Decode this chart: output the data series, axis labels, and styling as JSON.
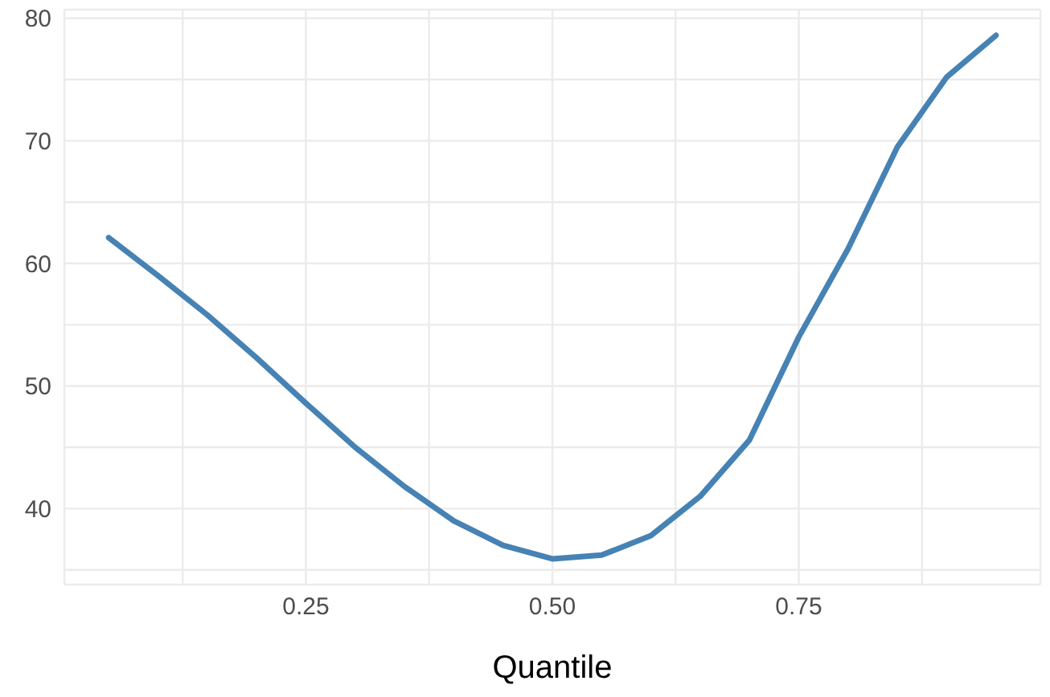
{
  "chart_data": {
    "type": "line",
    "xlabel": "Quantile",
    "x": [
      0.05,
      0.1,
      0.15,
      0.2,
      0.25,
      0.3,
      0.35,
      0.4,
      0.45,
      0.5,
      0.55,
      0.6,
      0.65,
      0.7,
      0.75,
      0.8,
      0.85,
      0.9,
      0.95
    ],
    "series": [
      {
        "color": "#4682b4",
        "values": [
          62.1,
          59,
          55.8,
          52.3,
          48.6,
          45,
          41.8,
          39,
          37,
          35.9,
          36.2,
          37.8,
          41,
          45.6,
          54,
          61.2,
          69.5,
          75.2,
          78.6
        ]
      }
    ],
    "xlim": [
      0.005,
      0.995
    ],
    "ylim": [
      33.8,
      80.7
    ],
    "xticks": [
      {
        "value": 0.125,
        "label": null
      },
      {
        "value": 0.25,
        "label": "0.25"
      },
      {
        "value": 0.375,
        "label": null
      },
      {
        "value": 0.5,
        "label": "0.50"
      },
      {
        "value": 0.625,
        "label": null
      },
      {
        "value": 0.75,
        "label": "0.75"
      },
      {
        "value": 0.875,
        "label": null
      }
    ],
    "yticks": [
      {
        "value": 35,
        "label": null
      },
      40,
      {
        "value": 45,
        "label": null
      },
      50,
      {
        "value": 55,
        "label": null
      },
      60,
      {
        "value": 65,
        "label": null
      },
      70,
      {
        "value": 75,
        "label": null
      },
      80
    ],
    "grid": true,
    "legend": false,
    "marker": "none",
    "line_style": "solid"
  }
}
